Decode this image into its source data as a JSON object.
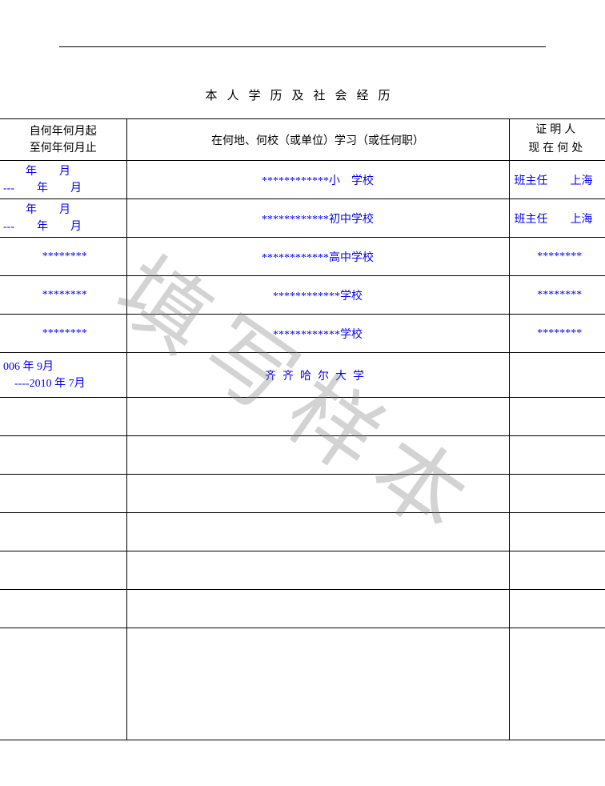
{
  "section_title": "本人学历及社会经历",
  "watermark": "填写样本",
  "headers": {
    "date": "自何年何月起\n至何年何月止",
    "place": "在何地、何校（或单位）学习（或任何职）",
    "witness": "证明人\n现在何处"
  },
  "rows": [
    {
      "date": "　　年　　月\n---　　年　　月",
      "place": "************小　学校",
      "witness": "班主任　　上海",
      "witness_centered": false
    },
    {
      "date": "　　年　　月\n---　　年　　月",
      "place": "************初中学校",
      "witness": "班主任　　上海",
      "witness_centered": false
    },
    {
      "date": "********",
      "place": "************高中学校",
      "witness": "********",
      "witness_centered": true
    },
    {
      "date": "********",
      "place": "************学校",
      "witness": "********",
      "witness_centered": true
    },
    {
      "date": "********",
      "place": "************学校",
      "witness": "********",
      "witness_centered": true
    },
    {
      "date": "006 年 9月\n　----2010 年 7月",
      "place": "齐齐哈尔大学",
      "place_spaced": true,
      "witness": "",
      "tall": true
    },
    {
      "date": "",
      "place": "",
      "witness": ""
    },
    {
      "date": "",
      "place": "",
      "witness": ""
    },
    {
      "date": "",
      "place": "",
      "witness": ""
    },
    {
      "date": "",
      "place": "",
      "witness": ""
    },
    {
      "date": "",
      "place": "",
      "witness": ""
    },
    {
      "date": "",
      "place": "",
      "witness": ""
    },
    {
      "date": "",
      "place": "",
      "witness": "",
      "last": true
    }
  ],
  "colors": {
    "text_black": "#000000",
    "text_blue": "#0000ff",
    "watermark_gray": "rgba(128,128,128,0.35)",
    "background": "#ffffff"
  }
}
